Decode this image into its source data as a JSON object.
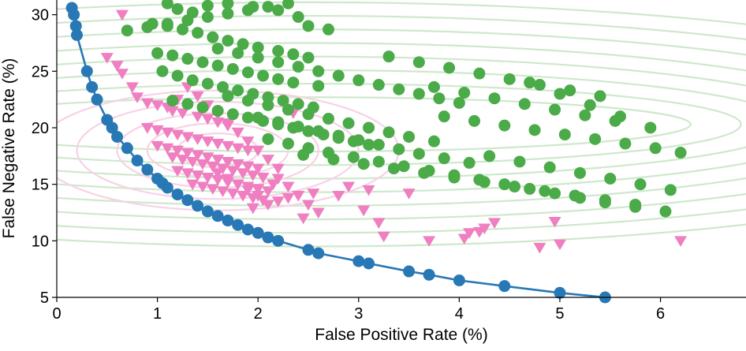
{
  "chart_data": {
    "type": "scatter",
    "title": "",
    "xlabel": "False Positive Rate (%)",
    "ylabel": "False Negative Rate (%)",
    "xlim": [
      0,
      6.85
    ],
    "ylim": [
      5,
      31.3
    ],
    "x_ticks": [
      "0",
      "1",
      "2",
      "3",
      "4",
      "5",
      "6"
    ],
    "y_ticks": [
      "5",
      "10",
      "15",
      "20",
      "25",
      "30"
    ],
    "grid": false,
    "legend": "none",
    "colors": {
      "frontier": "#2878b5",
      "triangles": "#ef7fc0",
      "circles": "#4aab48",
      "green_contour": "#cfe8cc",
      "pink_contour": "#f7d2e6"
    },
    "frontier": {
      "marker": "circle",
      "x": [
        0.15,
        0.17,
        0.19,
        0.2,
        0.3,
        0.35,
        0.4,
        0.5,
        0.55,
        0.6,
        0.7,
        0.8,
        0.9,
        1.0,
        1.05,
        1.1,
        1.2,
        1.3,
        1.4,
        1.5,
        1.6,
        1.7,
        1.8,
        1.9,
        2.0,
        2.1,
        2.2,
        2.5,
        2.6,
        3.0,
        3.1,
        3.5,
        3.7,
        4.0,
        4.45,
        5.0,
        5.45
      ],
      "y": [
        30.6,
        30.0,
        29.0,
        28.2,
        25.0,
        23.6,
        22.5,
        20.7,
        20.0,
        19.2,
        18.2,
        17.1,
        16.3,
        15.5,
        15.1,
        14.7,
        14.1,
        13.6,
        13.1,
        12.6,
        12.2,
        11.8,
        11.4,
        11.0,
        10.7,
        10.3,
        10.0,
        9.2,
        8.9,
        8.2,
        8.0,
        7.3,
        7.0,
        6.5,
        6.0,
        5.4,
        5.0
      ]
    },
    "series": [
      {
        "name": "triangles",
        "marker": "triangle-down",
        "x": [
          0.65,
          0.5,
          0.6,
          0.65,
          0.75,
          0.8,
          0.9,
          1.0,
          1.1,
          1.15,
          1.25,
          1.2,
          1.3,
          1.4,
          1.5,
          1.6,
          1.7,
          0.9,
          1.0,
          1.1,
          1.2,
          1.3,
          1.4,
          1.5,
          1.6,
          1.7,
          1.8,
          1.9,
          1.0,
          1.1,
          1.2,
          1.3,
          1.4,
          1.5,
          1.6,
          1.7,
          1.8,
          1.9,
          2.0,
          1.15,
          1.25,
          1.35,
          1.45,
          1.55,
          1.65,
          1.75,
          1.85,
          1.95,
          2.05,
          1.2,
          1.3,
          1.4,
          1.5,
          1.6,
          1.7,
          1.8,
          1.9,
          2.0,
          2.1,
          1.35,
          1.45,
          1.55,
          1.65,
          1.75,
          1.85,
          1.95,
          2.05,
          1.4,
          1.5,
          1.6,
          1.7,
          1.8,
          1.9,
          2.0,
          2.1,
          2.2,
          1.6,
          1.7,
          1.8,
          1.9,
          2.0,
          2.2,
          2.3,
          2.4,
          2.5,
          2.6,
          2.45,
          2.55,
          2.3,
          2.2,
          2.1,
          1.95,
          2.0,
          2.9,
          3.1,
          3.5,
          3.05,
          3.2,
          3.7,
          4.05,
          4.2,
          4.25,
          4.35,
          4.1,
          4.8,
          4.95,
          5.0,
          6.2,
          3.25,
          2.8,
          2.15,
          2.35,
          1.7
        ],
        "y": [
          30.0,
          26.2,
          25.5,
          24.8,
          23.6,
          22.7,
          22.2,
          22.0,
          21.8,
          21.5,
          21.3,
          22.5,
          23.6,
          21.0,
          20.8,
          20.5,
          20.2,
          20.0,
          19.8,
          19.6,
          19.4,
          19.2,
          19.0,
          18.8,
          18.6,
          18.4,
          18.2,
          18.0,
          18.4,
          18.2,
          18.0,
          17.8,
          17.6,
          17.4,
          17.2,
          17.0,
          16.8,
          16.6,
          16.4,
          17.4,
          17.2,
          17.0,
          16.8,
          16.6,
          16.4,
          16.2,
          16.0,
          15.8,
          15.6,
          16.2,
          16.0,
          15.8,
          15.6,
          15.4,
          15.2,
          15.0,
          14.8,
          14.6,
          14.4,
          15.0,
          14.8,
          14.6,
          14.4,
          14.2,
          14.0,
          13.8,
          13.6,
          22.8,
          22.0,
          21.2,
          20.4,
          19.6,
          18.8,
          18.0,
          17.2,
          16.4,
          16.0,
          15.5,
          15.0,
          14.5,
          14.0,
          15.5,
          14.8,
          14.0,
          13.2,
          12.5,
          12.0,
          14.2,
          13.8,
          13.5,
          13.2,
          12.9,
          14.6,
          14.8,
          14.5,
          14.2,
          12.7,
          11.6,
          10.0,
          10.2,
          10.8,
          11.1,
          11.6,
          10.7,
          9.4,
          11.7,
          9.7,
          10.0,
          10.4,
          14.0,
          15.0,
          21.3,
          20.4
        ]
      },
      {
        "name": "circles",
        "marker": "circle",
        "x": [
          1.1,
          1.2,
          1.35,
          1.5,
          1.7,
          1.95,
          2.2,
          2.4,
          0.95,
          1.1,
          1.25,
          1.4,
          1.55,
          1.7,
          1.85,
          2.0,
          2.2,
          2.35,
          2.5,
          1.0,
          1.15,
          1.3,
          1.45,
          1.6,
          1.75,
          1.9,
          2.05,
          2.2,
          2.35,
          2.6,
          1.05,
          1.2,
          1.35,
          1.5,
          1.65,
          1.8,
          1.95,
          2.1,
          2.25,
          2.4,
          2.55,
          1.15,
          1.3,
          1.45,
          1.6,
          1.75,
          1.9,
          2.05,
          2.2,
          2.35,
          2.5,
          2.65,
          2.8,
          2.95,
          3.1,
          1.7,
          1.9,
          2.1,
          2.3,
          2.5,
          2.7,
          2.9,
          3.1,
          3.3,
          3.5,
          3.75,
          2.0,
          2.2,
          2.4,
          2.6,
          2.8,
          3.0,
          3.2,
          3.4,
          3.6,
          3.85,
          4.1,
          2.1,
          2.3,
          2.5,
          2.7,
          2.95,
          3.2,
          3.45,
          3.7,
          3.95,
          4.2,
          4.45,
          4.7,
          4.95,
          5.2,
          5.45,
          5.75,
          6.05,
          2.45,
          2.75,
          3.05,
          3.35,
          3.65,
          3.95,
          4.25,
          4.55,
          4.85,
          5.15,
          5.45,
          5.75,
          3.3,
          3.6,
          3.9,
          4.2,
          4.5,
          4.8,
          5.1,
          5.4,
          3.75,
          4.05,
          4.35,
          4.65,
          4.95,
          5.25,
          5.55,
          3.85,
          4.15,
          4.45,
          4.75,
          5.05,
          5.35,
          5.65,
          5.95,
          6.2,
          4.3,
          4.6,
          4.9,
          5.2,
          5.5,
          5.8,
          6.1,
          4.7,
          5.0,
          5.3,
          5.6,
          5.9,
          0.7,
          0.9,
          1.1,
          1.3,
          1.5,
          1.7,
          1.9,
          2.1,
          2.3,
          2.5,
          2.7,
          1.6,
          1.8,
          2.0,
          2.2,
          2.4,
          2.6,
          2.8,
          3.0,
          3.2,
          3.4,
          3.6,
          3.8,
          4.0
        ],
        "y": [
          31.0,
          30.5,
          30.2,
          30.8,
          31.0,
          30.7,
          30.4,
          29.8,
          29.2,
          29.0,
          28.7,
          28.4,
          28.0,
          27.7,
          27.4,
          27.1,
          26.8,
          26.5,
          26.2,
          26.6,
          26.4,
          26.1,
          25.8,
          25.5,
          25.2,
          24.9,
          24.6,
          24.3,
          24.0,
          23.7,
          25.0,
          24.6,
          24.2,
          23.9,
          23.6,
          23.3,
          23.0,
          22.7,
          22.4,
          22.1,
          21.8,
          22.4,
          22.1,
          21.8,
          21.5,
          21.2,
          20.9,
          20.6,
          20.3,
          20.0,
          19.7,
          19.4,
          19.1,
          18.8,
          18.5,
          22.8,
          22.4,
          22.0,
          21.6,
          21.2,
          20.8,
          20.4,
          20.0,
          19.6,
          19.2,
          18.8,
          20.9,
          20.5,
          20.1,
          19.7,
          19.3,
          18.9,
          18.5,
          18.1,
          17.7,
          17.3,
          16.9,
          19.0,
          18.6,
          18.2,
          17.8,
          17.4,
          17.0,
          16.6,
          16.2,
          15.8,
          15.4,
          15.0,
          14.6,
          14.2,
          13.8,
          13.4,
          13.0,
          12.6,
          17.6,
          17.2,
          16.8,
          16.4,
          16.0,
          15.6,
          15.2,
          14.8,
          14.4,
          14.0,
          13.6,
          13.2,
          26.3,
          25.8,
          25.3,
          24.8,
          24.3,
          23.8,
          23.3,
          22.8,
          23.6,
          23.1,
          22.6,
          22.1,
          21.6,
          21.1,
          20.6,
          21.0,
          20.6,
          20.2,
          19.8,
          19.4,
          19.0,
          18.6,
          18.2,
          17.8,
          17.5,
          17.0,
          16.5,
          16.0,
          15.5,
          15.0,
          14.5,
          24.0,
          23.0,
          22.0,
          21.0,
          20.0,
          28.6,
          28.9,
          29.2,
          29.5,
          29.8,
          30.1,
          30.4,
          30.7,
          31.0,
          29.0,
          28.7,
          27.0,
          26.6,
          26.2,
          25.8,
          25.4,
          25.0,
          24.6,
          24.2,
          23.8,
          23.4,
          23.0,
          22.6,
          22.2
        ]
      }
    ],
    "contours": [
      {
        "name": "green",
        "center": [
          2.5,
          20.3
        ],
        "semi_axes": [
          [
            3.8,
            2.4
          ],
          [
            4.3,
            3.6
          ],
          [
            4.8,
            4.8
          ],
          [
            5.3,
            6.0
          ],
          [
            5.8,
            7.2
          ],
          [
            6.4,
            8.4
          ],
          [
            7.0,
            9.6
          ],
          [
            7.6,
            10.8
          ]
        ]
      },
      {
        "name": "pink",
        "center": [
          1.6,
          18.0
        ],
        "semi_axes": [
          [
            0.4,
            1.5
          ],
          [
            0.7,
            2.4
          ],
          [
            1.0,
            3.3
          ],
          [
            1.4,
            4.3
          ],
          [
            1.8,
            5.3
          ]
        ]
      }
    ]
  }
}
